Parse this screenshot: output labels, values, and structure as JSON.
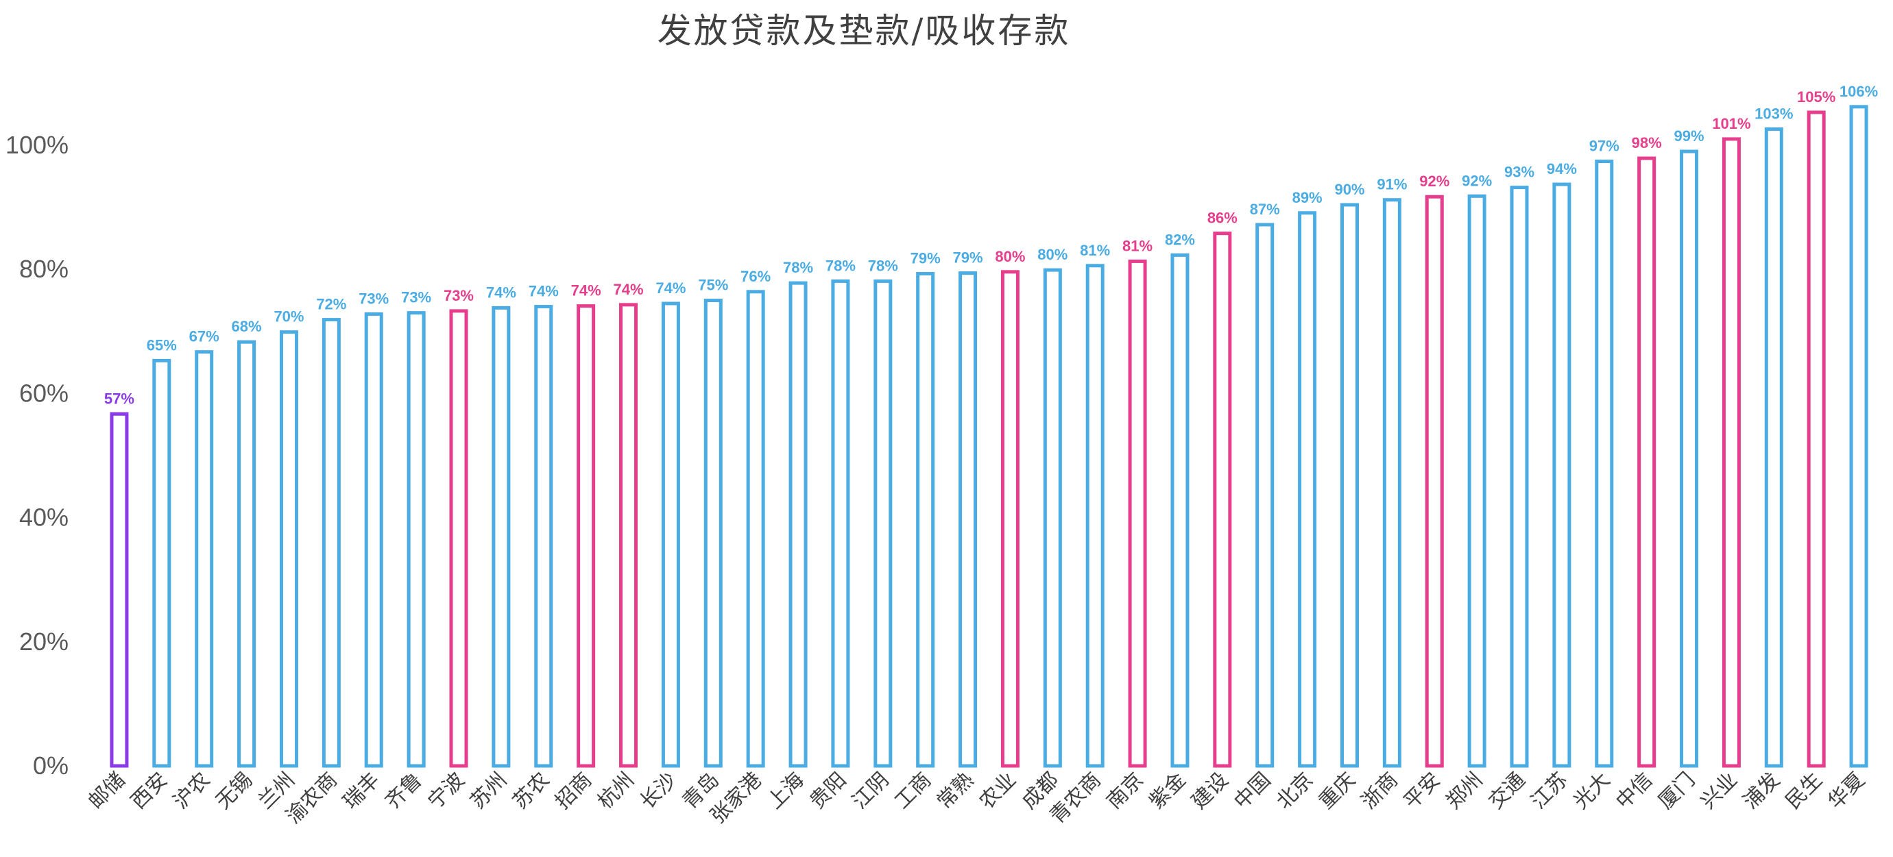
{
  "chart_data": {
    "type": "bar",
    "title": "发放贷款及垫款/吸收存款",
    "xlabel": "",
    "ylabel": "",
    "ylim": [
      0,
      1.1
    ],
    "yticks": [
      {
        "value": 0,
        "label": "0%"
      },
      {
        "value": 0.2,
        "label": "20%"
      },
      {
        "value": 0.4,
        "label": "40%"
      },
      {
        "value": 0.6,
        "label": "60%"
      },
      {
        "value": 0.8,
        "label": "80%"
      },
      {
        "value": 1.0,
        "label": "100%"
      }
    ],
    "grid": false,
    "colors": {
      "default": "#4AACE2",
      "highlight": "#E63E8C",
      "lowest": "#8A3AE6"
    },
    "categories": [
      "邮储",
      "西安",
      "沪农",
      "无锡",
      "兰州",
      "渝农商",
      "瑞丰",
      "齐鲁",
      "宁波",
      "苏州",
      "苏农",
      "招商",
      "杭州",
      "长沙",
      "青岛",
      "张家港",
      "上海",
      "贵阳",
      "江阴",
      "工商",
      "常熟",
      "农业",
      "成都",
      "青农商",
      "南京",
      "紫金",
      "建设",
      "中国",
      "北京",
      "重庆",
      "浙商",
      "平安",
      "郑州",
      "交通",
      "江苏",
      "光大",
      "中信",
      "厦门",
      "兴业",
      "浦发",
      "民生",
      "华夏"
    ],
    "values": [
      0.567,
      0.653,
      0.667,
      0.683,
      0.699,
      0.719,
      0.728,
      0.73,
      0.733,
      0.738,
      0.74,
      0.741,
      0.743,
      0.745,
      0.75,
      0.764,
      0.778,
      0.781,
      0.781,
      0.793,
      0.794,
      0.796,
      0.799,
      0.806,
      0.813,
      0.823,
      0.858,
      0.872,
      0.891,
      0.904,
      0.912,
      0.917,
      0.918,
      0.932,
      0.937,
      0.974,
      0.979,
      0.99,
      1.01,
      1.026,
      1.053,
      1.062
    ],
    "data_labels": [
      "57%",
      "65%",
      "67%",
      "68%",
      "70%",
      "72%",
      "73%",
      "73%",
      "73%",
      "74%",
      "74%",
      "74%",
      "74%",
      "74%",
      "75%",
      "76%",
      "78%",
      "78%",
      "78%",
      "79%",
      "79%",
      "80%",
      "80%",
      "81%",
      "81%",
      "82%",
      "86%",
      "87%",
      "89%",
      "90%",
      "91%",
      "92%",
      "92%",
      "93%",
      "94%",
      "97%",
      "98%",
      "99%",
      "101%",
      "103%",
      "105%",
      "106%"
    ],
    "series_color_keys": [
      "lowest",
      "default",
      "default",
      "default",
      "default",
      "default",
      "default",
      "default",
      "highlight",
      "default",
      "default",
      "highlight",
      "highlight",
      "default",
      "default",
      "default",
      "default",
      "default",
      "default",
      "default",
      "default",
      "highlight",
      "default",
      "default",
      "highlight",
      "default",
      "highlight",
      "default",
      "default",
      "default",
      "default",
      "highlight",
      "default",
      "default",
      "default",
      "default",
      "highlight",
      "default",
      "highlight",
      "default",
      "highlight",
      "default"
    ]
  }
}
